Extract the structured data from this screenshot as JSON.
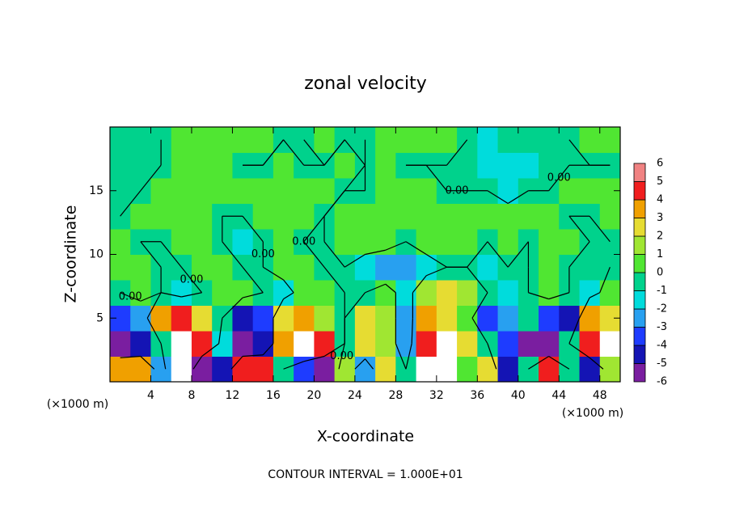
{
  "chart_data": {
    "type": "contour",
    "title": "zonal velocity",
    "x_label": "X-coordinate",
    "y_label": "Z-coordinate",
    "x_unit_label": "(×1000 m)",
    "footer": "CONTOUR INTERVAL = 1.000E+01",
    "xlim": [
      0,
      50
    ],
    "ylim": [
      0,
      20
    ],
    "xticks": [
      4,
      8,
      12,
      16,
      20,
      24,
      28,
      32,
      36,
      40,
      44,
      48
    ],
    "yticks": [
      5,
      10,
      15
    ],
    "x": [
      1,
      3,
      5,
      7,
      9,
      11,
      13,
      15,
      17,
      19,
      21,
      23,
      25,
      27,
      29,
      31,
      33,
      35,
      37,
      39,
      41,
      43,
      45,
      47,
      49
    ],
    "y": [
      1,
      3,
      5,
      7,
      9,
      11,
      13,
      15,
      17,
      19
    ],
    "z": [
      [
        4,
        4,
        -2,
        7,
        -5,
        -4,
        5,
        5,
        0,
        -3,
        -5,
        2,
        -2,
        3,
        0,
        7,
        7,
        1,
        3,
        -4,
        0,
        5,
        0,
        -4,
        2
      ],
      [
        -5,
        -4,
        0,
        7,
        5,
        -1,
        -5,
        -4,
        4,
        7,
        5,
        0,
        3,
        2,
        -2,
        5,
        7,
        3,
        0,
        -3,
        -5,
        -5,
        0,
        5,
        7
      ],
      [
        -3,
        -2,
        4,
        5,
        3,
        0,
        -4,
        -3,
        3,
        4,
        2,
        0,
        3,
        2,
        -2,
        4,
        3,
        1,
        -3,
        -2,
        0,
        -3,
        -4,
        4,
        3
      ],
      [
        0,
        1,
        0,
        -1,
        0,
        1,
        1,
        0,
        -1,
        1,
        1,
        0,
        0,
        1,
        -1,
        2,
        3,
        2,
        0,
        -1,
        0,
        1,
        0,
        -1,
        1
      ],
      [
        1,
        1,
        0,
        0,
        1,
        1,
        0,
        0,
        1,
        1,
        0,
        0,
        -1,
        -2,
        -2,
        -1,
        0,
        0,
        -1,
        0,
        0,
        1,
        0,
        0,
        0
      ],
      [
        1,
        0,
        0,
        1,
        1,
        0,
        -1,
        0,
        1,
        0,
        0,
        1,
        1,
        1,
        0,
        1,
        1,
        1,
        0,
        1,
        0,
        1,
        1,
        0,
        0
      ],
      [
        0,
        1,
        1,
        1,
        1,
        0,
        0,
        1,
        1,
        1,
        0,
        1,
        1,
        1,
        1,
        1,
        1,
        1,
        1,
        1,
        1,
        1,
        0,
        0,
        1
      ],
      [
        0,
        0,
        1,
        1,
        1,
        1,
        1,
        1,
        1,
        1,
        1,
        0,
        0,
        1,
        1,
        1,
        0,
        0,
        0,
        -1,
        0,
        0,
        1,
        1,
        1
      ],
      [
        0,
        0,
        0,
        1,
        1,
        1,
        0,
        0,
        1,
        0,
        0,
        1,
        0,
        1,
        0,
        0,
        0,
        0,
        -1,
        -1,
        -1,
        0,
        0,
        0,
        0
      ],
      [
        0,
        0,
        0,
        1,
        1,
        1,
        1,
        1,
        0,
        0,
        1,
        0,
        0,
        1,
        1,
        1,
        1,
        0,
        -1,
        0,
        0,
        0,
        0,
        1,
        1
      ]
    ],
    "contour_levels": [
      {
        "value": 0,
        "label": "0.00"
      }
    ],
    "colorbar": {
      "levels": [
        -6,
        -5,
        -4,
        -3,
        -2,
        -1,
        0,
        1,
        2,
        3,
        4,
        5,
        6
      ],
      "colors": [
        "#7a1ea0",
        "#1414b4",
        "#1e3cff",
        "#28a0f0",
        "#00dcdc",
        "#00d28c",
        "#50e632",
        "#a0e632",
        "#e6dc32",
        "#f0a000",
        "#f01e1e",
        "#f08282"
      ],
      "over_color": "#ffffff",
      "under_color": "#7a1ea0"
    }
  }
}
